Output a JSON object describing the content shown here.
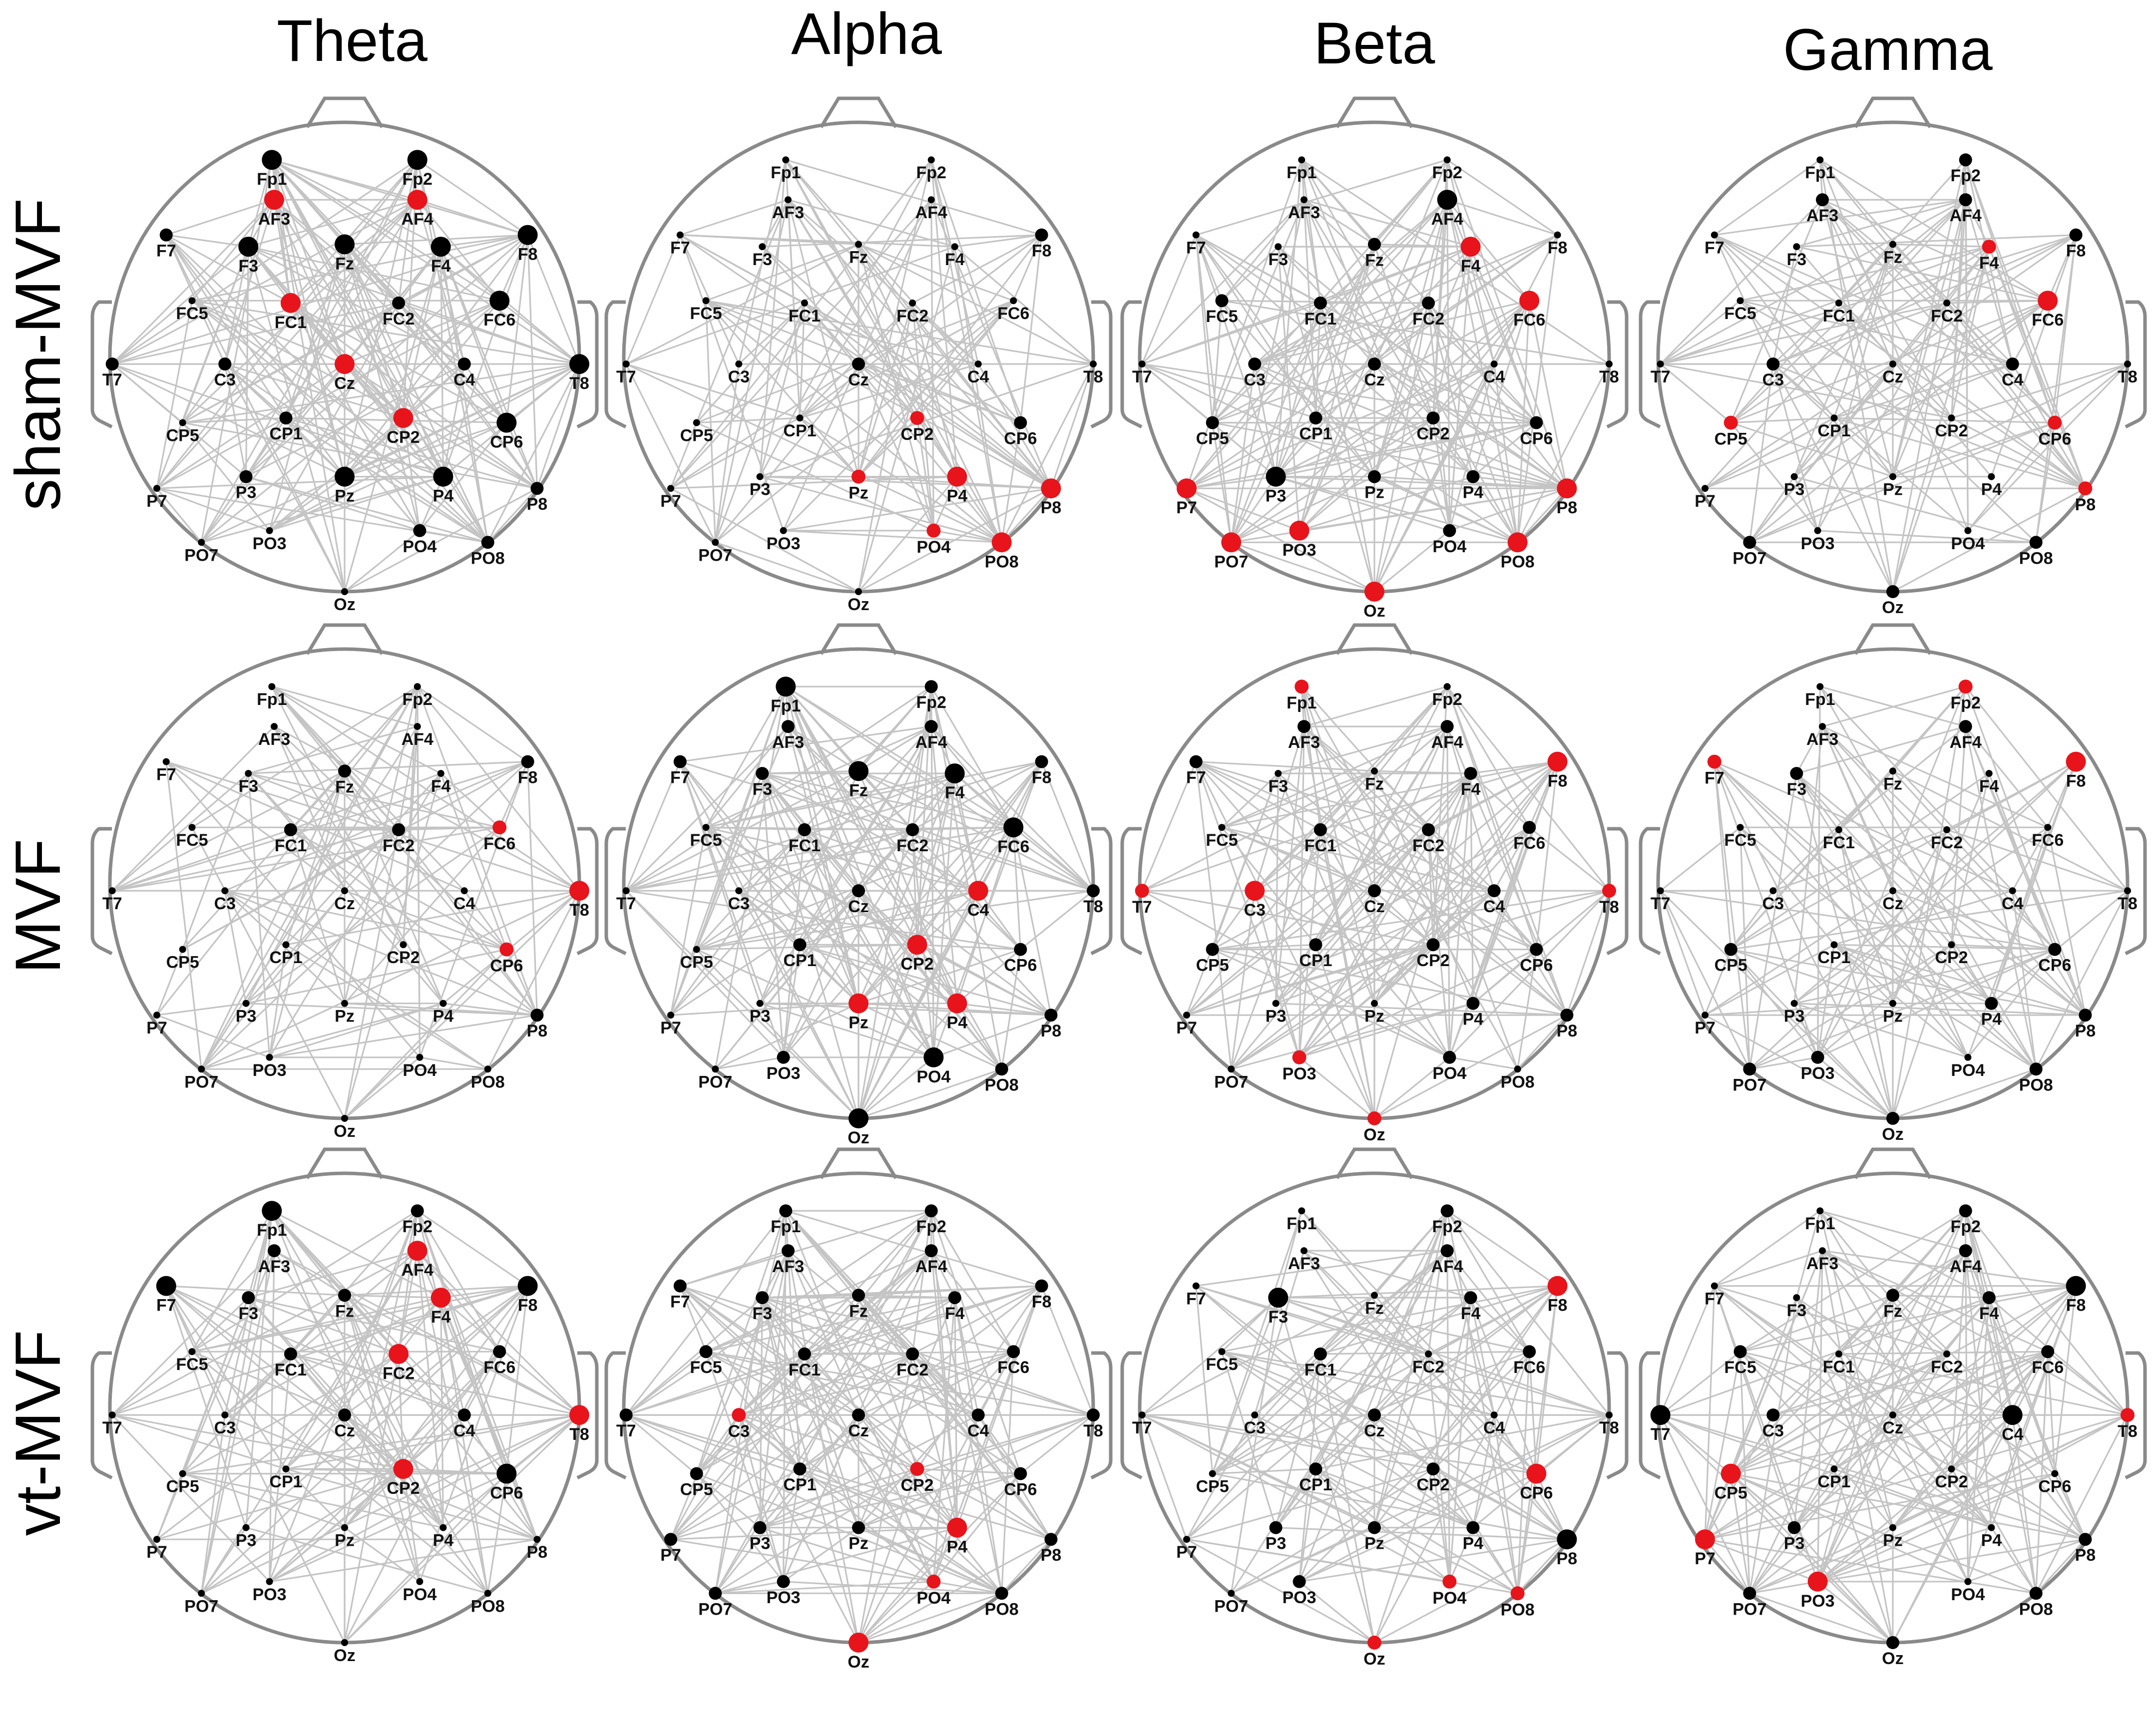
{
  "columns": [
    "Theta",
    "Alpha",
    "Beta",
    "Gamma"
  ],
  "rows": [
    "sham-MVF",
    "MVF",
    "vt-MVF"
  ],
  "colors": {
    "node_normal": "#000000",
    "node_highlight": "#e8141b",
    "edge": "#c4c4c4",
    "head": "#8a8a8a"
  },
  "electrodes": [
    "Fp1",
    "Fp2",
    "AF3",
    "AF4",
    "F7",
    "F3",
    "Fz",
    "F4",
    "F8",
    "FC5",
    "FC1",
    "FC2",
    "FC6",
    "T7",
    "C3",
    "Cz",
    "C4",
    "T8",
    "CP5",
    "CP1",
    "CP2",
    "CP6",
    "P7",
    "P3",
    "Pz",
    "P4",
    "P8",
    "PO7",
    "PO3",
    "PO4",
    "PO8",
    "Oz"
  ],
  "node_size_legend": "0 = small, 1 = medium, 2 = large; red list = highlighted (hub) electrodes",
  "panels": [
    {
      "row": "sham-MVF",
      "column": "Theta",
      "red": [
        "AF3",
        "AF4",
        "FC1",
        "Cz",
        "CP2"
      ],
      "sizes": {
        "Fp1": 2,
        "Fp2": 2,
        "AF3": 2,
        "AF4": 2,
        "F7": 1,
        "F3": 2,
        "Fz": 2,
        "F4": 2,
        "F8": 2,
        "FC5": 0,
        "FC1": 2,
        "FC2": 1,
        "FC6": 2,
        "T7": 1,
        "C3": 1,
        "Cz": 2,
        "C4": 1,
        "T8": 2,
        "CP5": 0,
        "CP1": 1,
        "CP2": 2,
        "CP6": 2,
        "P7": 0,
        "P3": 1,
        "Pz": 2,
        "P4": 2,
        "P8": 1,
        "PO7": 0,
        "PO3": 0,
        "PO4": 1,
        "PO8": 1,
        "Oz": 0
      }
    },
    {
      "row": "sham-MVF",
      "column": "Alpha",
      "red": [
        "CP2",
        "Pz",
        "P4",
        "P8",
        "PO4",
        "PO8"
      ],
      "sizes": {
        "Fp1": 0,
        "Fp2": 0,
        "AF3": 0,
        "AF4": 0,
        "F7": 0,
        "F3": 0,
        "Fz": 0,
        "F4": 0,
        "F8": 1,
        "FC5": 0,
        "FC1": 0,
        "FC2": 0,
        "FC6": 0,
        "T7": 0,
        "C3": 0,
        "Cz": 1,
        "C4": 0,
        "T8": 0,
        "CP5": 0,
        "CP1": 0,
        "CP2": 1,
        "CP6": 1,
        "P7": 0,
        "P3": 0,
        "Pz": 1,
        "P4": 2,
        "P8": 2,
        "PO7": 0,
        "PO3": 0,
        "PO4": 1,
        "PO8": 2,
        "Oz": 0
      }
    },
    {
      "row": "sham-MVF",
      "column": "Beta",
      "red": [
        "F4",
        "FC6",
        "P7",
        "PO7",
        "PO3",
        "Oz",
        "PO8",
        "P8"
      ],
      "sizes": {
        "Fp1": 0,
        "Fp2": 0,
        "AF3": 0,
        "AF4": 2,
        "F7": 0,
        "F3": 0,
        "Fz": 1,
        "F4": 2,
        "F8": 0,
        "FC5": 1,
        "FC1": 1,
        "FC2": 1,
        "FC6": 2,
        "T7": 0,
        "C3": 1,
        "Cz": 1,
        "C4": 0,
        "T8": 0,
        "CP5": 1,
        "CP1": 1,
        "CP2": 1,
        "CP6": 1,
        "P7": 2,
        "P3": 2,
        "Pz": 1,
        "P4": 1,
        "P8": 2,
        "PO7": 2,
        "PO3": 2,
        "PO4": 1,
        "PO8": 2,
        "Oz": 2
      }
    },
    {
      "row": "sham-MVF",
      "column": "Gamma",
      "red": [
        "F4",
        "FC6",
        "CP5",
        "CP6",
        "P8"
      ],
      "sizes": {
        "Fp1": 0,
        "Fp2": 1,
        "AF3": 1,
        "AF4": 1,
        "F7": 0,
        "F3": 0,
        "Fz": 0,
        "F4": 1,
        "F8": 1,
        "FC5": 0,
        "FC1": 0,
        "FC2": 0,
        "FC6": 2,
        "T7": 0,
        "C3": 1,
        "Cz": 0,
        "C4": 1,
        "T8": 0,
        "CP5": 1,
        "CP1": 0,
        "CP2": 0,
        "CP6": 1,
        "P7": 0,
        "P3": 0,
        "Pz": 0,
        "P4": 0,
        "P8": 1,
        "PO7": 1,
        "PO3": 0,
        "PO4": 0,
        "PO8": 1,
        "Oz": 1
      }
    },
    {
      "row": "MVF",
      "column": "Theta",
      "red": [
        "FC6",
        "T8",
        "CP6"
      ],
      "sizes": {
        "Fp1": 0,
        "Fp2": 0,
        "AF3": 0,
        "AF4": 0,
        "F7": 0,
        "F3": 0,
        "Fz": 1,
        "F4": 0,
        "F8": 1,
        "FC5": 0,
        "FC1": 1,
        "FC2": 1,
        "FC6": 1,
        "T7": 0,
        "C3": 0,
        "Cz": 0,
        "C4": 0,
        "T8": 2,
        "CP5": 0,
        "CP1": 0,
        "CP2": 0,
        "CP6": 1,
        "P7": 0,
        "P3": 0,
        "Pz": 0,
        "P4": 0,
        "P8": 1,
        "PO7": 0,
        "PO3": 0,
        "PO4": 0,
        "PO8": 0,
        "Oz": 0
      }
    },
    {
      "row": "MVF",
      "column": "Alpha",
      "red": [
        "C4",
        "CP2",
        "Pz",
        "P4"
      ],
      "sizes": {
        "Fp1": 2,
        "Fp2": 1,
        "AF3": 1,
        "AF4": 1,
        "F7": 1,
        "F3": 1,
        "Fz": 2,
        "F4": 2,
        "F8": 1,
        "FC5": 0,
        "FC1": 1,
        "FC2": 1,
        "FC6": 2,
        "T7": 0,
        "C3": 0,
        "Cz": 1,
        "C4": 2,
        "T8": 1,
        "CP5": 0,
        "CP1": 1,
        "CP2": 2,
        "CP6": 1,
        "P7": 0,
        "P3": 0,
        "Pz": 2,
        "P4": 2,
        "P8": 1,
        "PO7": 0,
        "PO3": 1,
        "PO4": 2,
        "PO8": 1,
        "Oz": 2
      }
    },
    {
      "row": "MVF",
      "column": "Beta",
      "red": [
        "Fp1",
        "F8",
        "T7",
        "C3",
        "T8",
        "PO3",
        "Oz"
      ],
      "sizes": {
        "Fp1": 1,
        "Fp2": 0,
        "AF3": 1,
        "AF4": 1,
        "F7": 1,
        "F3": 0,
        "Fz": 0,
        "F4": 1,
        "F8": 2,
        "FC5": 0,
        "FC1": 1,
        "FC2": 1,
        "FC6": 1,
        "T7": 1,
        "C3": 2,
        "Cz": 1,
        "C4": 1,
        "T8": 1,
        "CP5": 1,
        "CP1": 1,
        "CP2": 1,
        "CP6": 1,
        "P7": 0,
        "P3": 0,
        "Pz": 0,
        "P4": 1,
        "P8": 1,
        "PO7": 0,
        "PO3": 1,
        "PO4": 1,
        "PO8": 0,
        "Oz": 1
      }
    },
    {
      "row": "MVF",
      "column": "Gamma",
      "red": [
        "Fp2",
        "F7",
        "F8"
      ],
      "sizes": {
        "Fp1": 0,
        "Fp2": 1,
        "AF3": 0,
        "AF4": 1,
        "F7": 1,
        "F3": 1,
        "Fz": 0,
        "F4": 0,
        "F8": 2,
        "FC5": 0,
        "FC1": 0,
        "FC2": 0,
        "FC6": 0,
        "T7": 0,
        "C3": 0,
        "Cz": 0,
        "C4": 0,
        "T8": 0,
        "CP5": 1,
        "CP1": 0,
        "CP2": 0,
        "CP6": 1,
        "P7": 0,
        "P3": 0,
        "Pz": 0,
        "P4": 1,
        "P8": 1,
        "PO7": 1,
        "PO3": 1,
        "PO4": 0,
        "PO8": 1,
        "Oz": 1
      }
    },
    {
      "row": "vt-MVF",
      "column": "Theta",
      "red": [
        "AF4",
        "F4",
        "FC2",
        "T8",
        "CP2"
      ],
      "sizes": {
        "Fp1": 2,
        "Fp2": 1,
        "AF3": 1,
        "AF4": 2,
        "F7": 2,
        "F3": 1,
        "Fz": 1,
        "F4": 2,
        "F8": 2,
        "FC5": 0,
        "FC1": 1,
        "FC2": 2,
        "FC6": 1,
        "T7": 0,
        "C3": 0,
        "Cz": 1,
        "C4": 1,
        "T8": 2,
        "CP5": 0,
        "CP1": 0,
        "CP2": 2,
        "CP6": 2,
        "P7": 0,
        "P3": 0,
        "Pz": 0,
        "P4": 0,
        "P8": 0,
        "PO7": 0,
        "PO3": 0,
        "PO4": 0,
        "PO8": 0,
        "Oz": 0
      }
    },
    {
      "row": "vt-MVF",
      "column": "Alpha",
      "red": [
        "C3",
        "CP2",
        "P4",
        "PO4",
        "Oz"
      ],
      "sizes": {
        "Fp1": 1,
        "Fp2": 1,
        "AF3": 1,
        "AF4": 1,
        "F7": 1,
        "F3": 1,
        "Fz": 1,
        "F4": 1,
        "F8": 1,
        "FC5": 1,
        "FC1": 1,
        "FC2": 1,
        "FC6": 1,
        "T7": 1,
        "C3": 1,
        "Cz": 1,
        "C4": 1,
        "T8": 1,
        "CP5": 1,
        "CP1": 1,
        "CP2": 1,
        "CP6": 1,
        "P7": 1,
        "P3": 1,
        "Pz": 1,
        "P4": 2,
        "P8": 1,
        "PO7": 1,
        "PO3": 1,
        "PO4": 1,
        "PO8": 1,
        "Oz": 2
      }
    },
    {
      "row": "vt-MVF",
      "column": "Beta",
      "red": [
        "F8",
        "CP6",
        "PO4",
        "PO8",
        "Oz"
      ],
      "sizes": {
        "Fp1": 0,
        "Fp2": 1,
        "AF3": 0,
        "AF4": 1,
        "F7": 0,
        "F3": 2,
        "Fz": 0,
        "F4": 1,
        "F8": 2,
        "FC5": 0,
        "FC1": 1,
        "FC2": 0,
        "FC6": 1,
        "T7": 0,
        "C3": 0,
        "Cz": 1,
        "C4": 0,
        "T8": 0,
        "CP5": 0,
        "CP1": 1,
        "CP2": 1,
        "CP6": 2,
        "P7": 0,
        "P3": 1,
        "Pz": 1,
        "P4": 1,
        "P8": 2,
        "PO7": 0,
        "PO3": 1,
        "PO4": 1,
        "PO8": 1,
        "Oz": 1
      }
    },
    {
      "row": "vt-MVF",
      "column": "Gamma",
      "red": [
        "T8",
        "CP5",
        "P7",
        "PO3"
      ],
      "sizes": {
        "Fp1": 0,
        "Fp2": 1,
        "AF3": 0,
        "AF4": 1,
        "F7": 0,
        "F3": 0,
        "Fz": 1,
        "F4": 1,
        "F8": 2,
        "FC5": 1,
        "FC1": 0,
        "FC2": 0,
        "FC6": 1,
        "T7": 2,
        "C3": 1,
        "Cz": 0,
        "C4": 2,
        "T8": 1,
        "CP5": 2,
        "CP1": 0,
        "CP2": 0,
        "CP6": 0,
        "P7": 2,
        "P3": 1,
        "Pz": 0,
        "P4": 0,
        "P8": 1,
        "PO7": 1,
        "PO3": 2,
        "PO4": 0,
        "PO8": 1,
        "Oz": 1
      }
    }
  ]
}
